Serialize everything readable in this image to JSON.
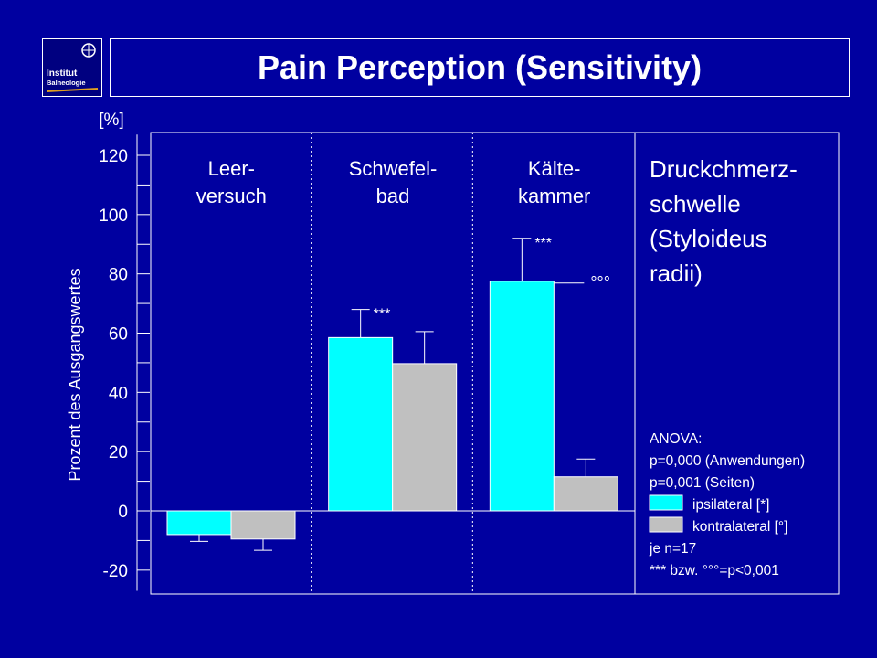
{
  "slide": {
    "title": "Pain Perception (Sensitivity)",
    "logo_line1": "Institut",
    "logo_line2": "Balneologie"
  },
  "chart_data": {
    "type": "bar",
    "ylabel": "Prozent des Ausgangswertes",
    "yunit": "[%]",
    "ylim": [
      -27,
      127
    ],
    "yticks": [
      -20,
      0,
      20,
      40,
      60,
      80,
      100,
      120
    ],
    "grid": false,
    "groups": [
      {
        "label": [
          "Leer-",
          "versuch"
        ]
      },
      {
        "label": [
          "Schwefel-",
          "bad"
        ]
      },
      {
        "label": [
          "Kälte-",
          "kammer"
        ]
      }
    ],
    "series": [
      {
        "name": "ipsilateral [*]",
        "color": "#00ffff",
        "values": [
          -8,
          58.5,
          77.5
        ],
        "errors": [
          2.3,
          9.5,
          14.5
        ]
      },
      {
        "name": "kontralateral [°]",
        "color": "#c0c0c0",
        "values": [
          -9.5,
          49.7,
          11.5
        ],
        "errors": [
          3.8,
          10.8,
          6
        ]
      }
    ],
    "significance": [
      {
        "group": 1,
        "series": 0,
        "text": "***"
      },
      {
        "group": 2,
        "series": 0,
        "text": "***"
      },
      {
        "group": 2,
        "series": 1,
        "text": "°°°"
      }
    ],
    "side_title": [
      "Druckchmerz-",
      "schwelle",
      "(Styloideus",
      "radii)"
    ],
    "stats_lines_top": [
      "ANOVA:",
      "p=0,000 (Anwendungen)",
      "p=0,001 (Seiten)"
    ],
    "stats_lines_bottom": [
      "je n=17",
      "*** bzw. °°°=p<0,001"
    ]
  }
}
